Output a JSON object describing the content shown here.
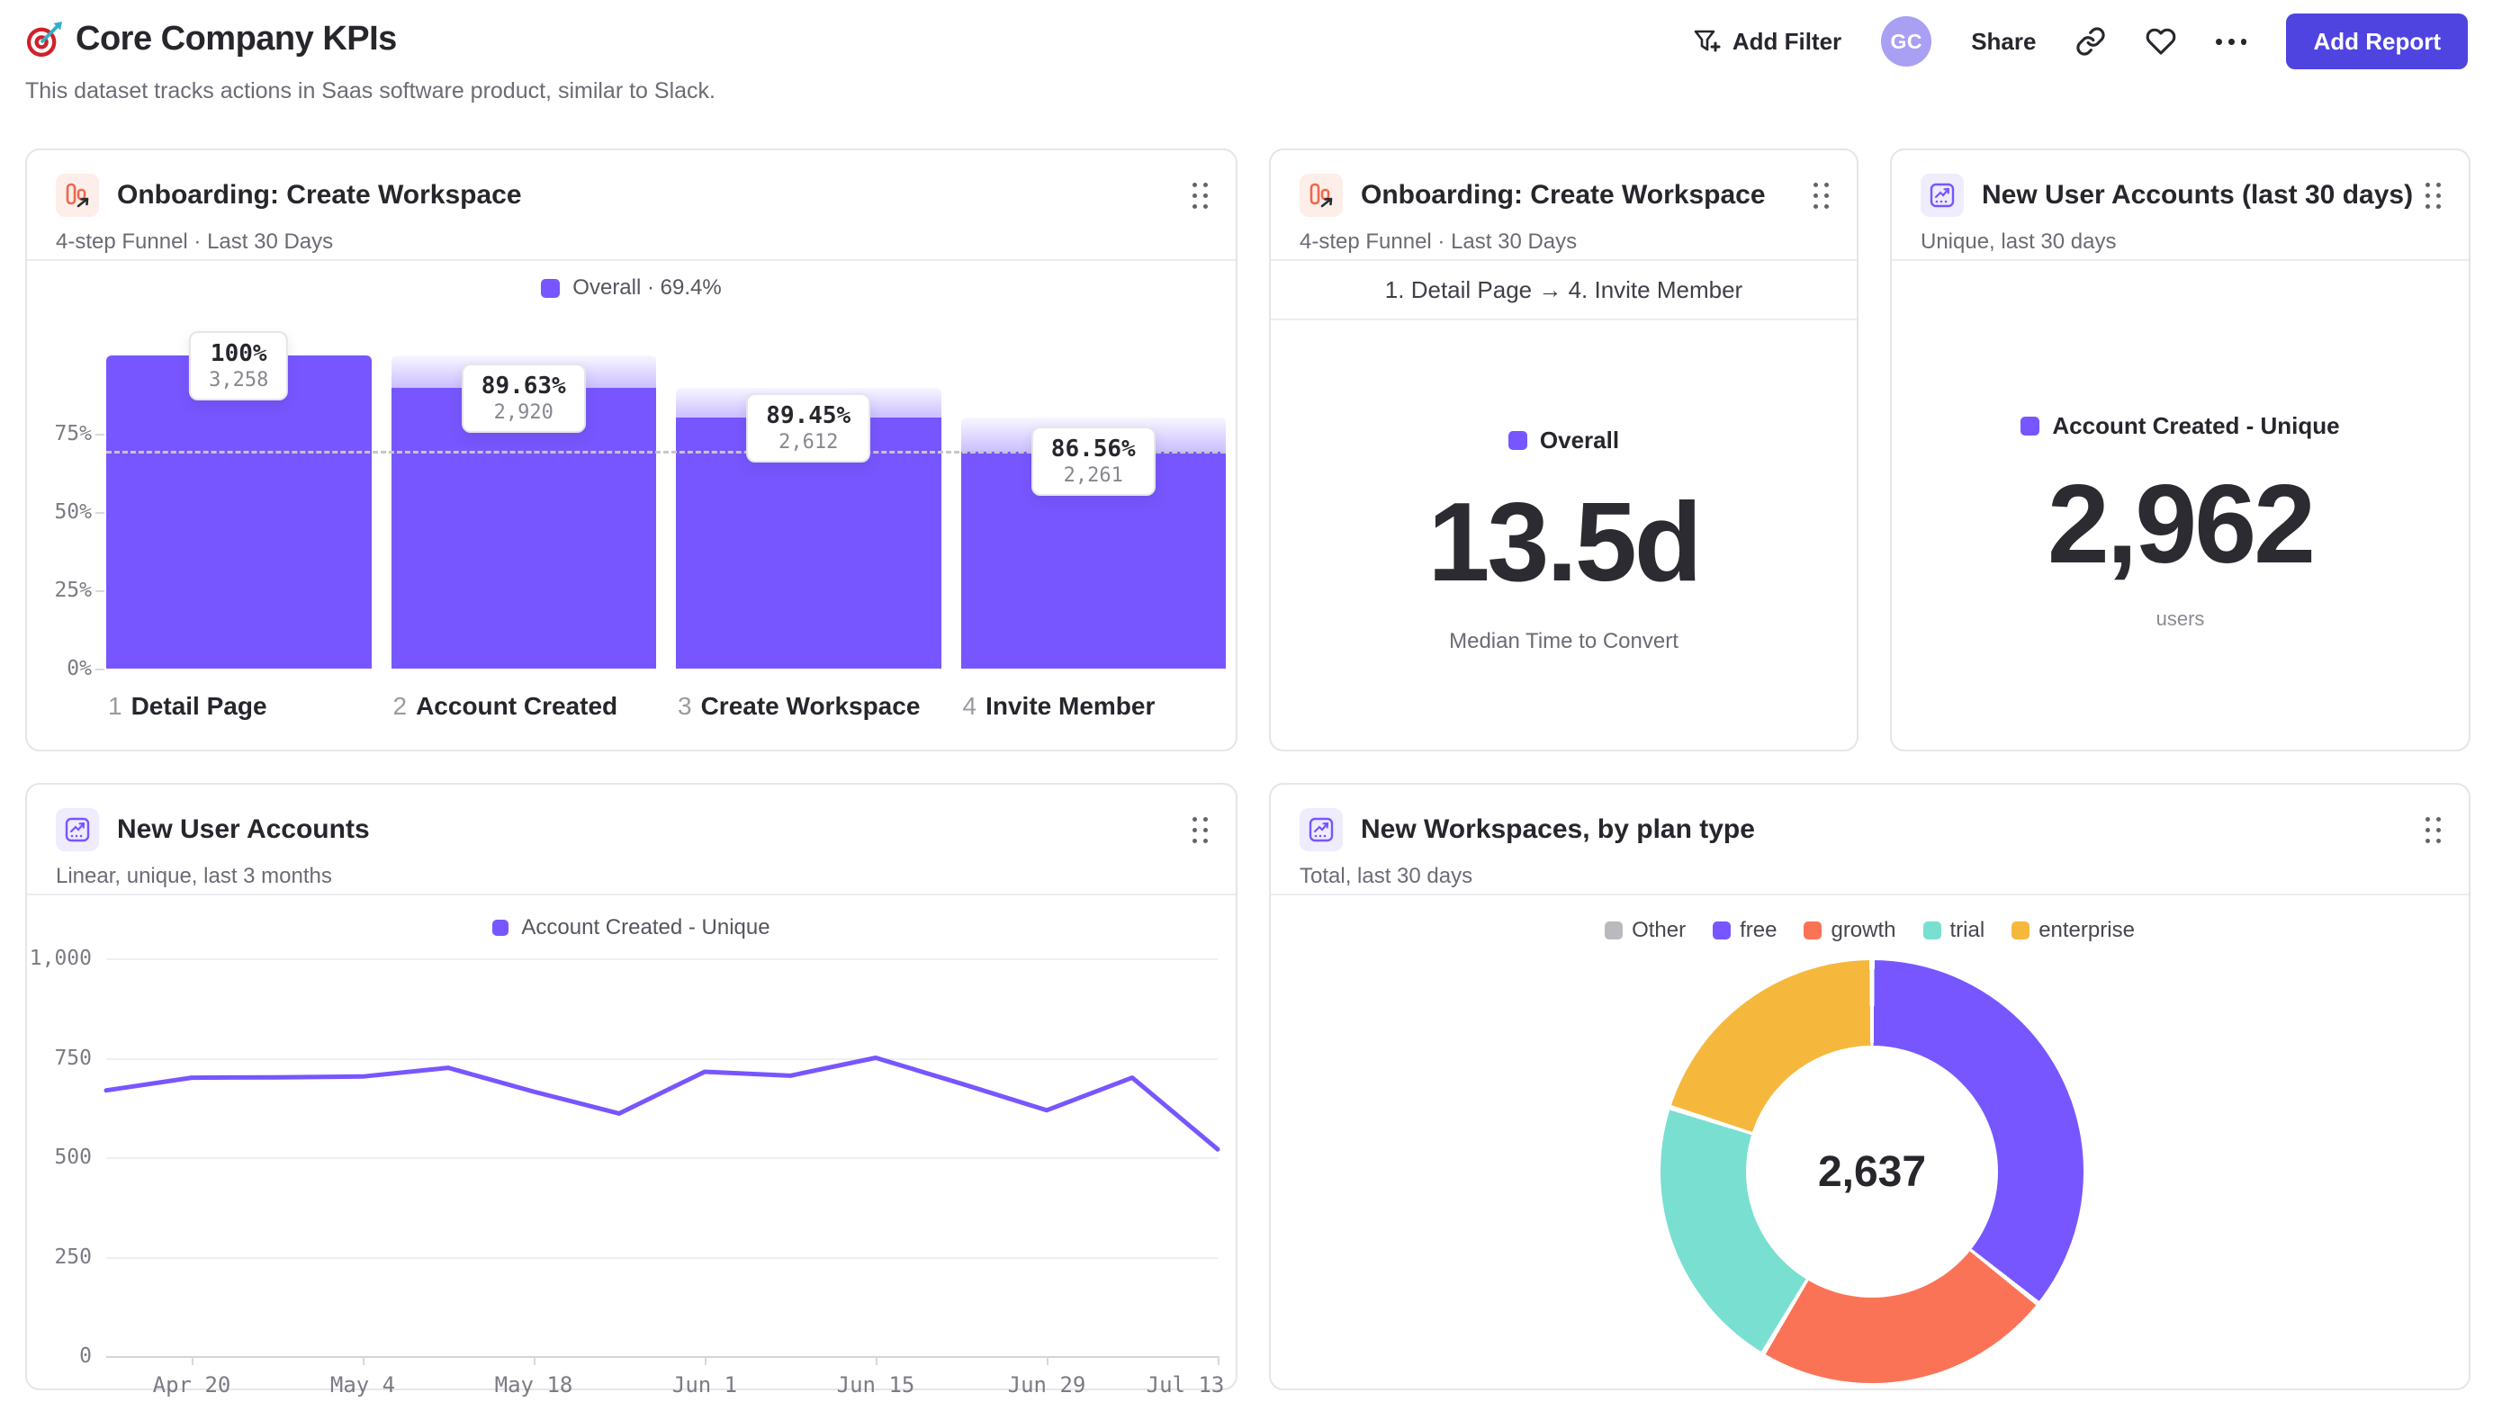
{
  "header": {
    "title": "Core Company KPIs",
    "subtitle": "This dataset tracks actions in Saas software product, similar to Slack."
  },
  "toolbar": {
    "add_filter_label": "Add Filter",
    "avatar_initials": "GC",
    "share_label": "Share",
    "add_report_label": "Add Report"
  },
  "cards": {
    "funnel": {
      "title": "Onboarding: Create Workspace",
      "subtitle": "4-step Funnel · Last 30 Days",
      "legend": "Overall · 69.4%"
    },
    "convert": {
      "title": "Onboarding: Create Workspace",
      "subtitle": "4-step Funnel · Last 30 Days",
      "range": "1. Detail Page → 4. Invite Member",
      "legend": "Overall",
      "value": "13.5d",
      "caption": "Median Time to Convert"
    },
    "accounts30": {
      "title": "New User Accounts (last 30 days)",
      "subtitle": "Unique, last 30 days",
      "legend": "Account Created - Unique",
      "value": "2,962",
      "caption": "users"
    },
    "accounts_line": {
      "title": "New User Accounts",
      "subtitle": "Linear, unique, last 3 months",
      "legend": "Account Created - Unique"
    },
    "workspaces": {
      "title": "New Workspaces, by plan type",
      "subtitle": "Total, last 30 days",
      "center_value": "2,637"
    }
  },
  "colors": {
    "purple": "#7856FF",
    "button": "#4F44E0",
    "coral": "#FB7357",
    "teal": "#79DFD1",
    "yellow": "#F5B83D",
    "gray": "#B9B9BE"
  },
  "chart_data": [
    {
      "id": "onboarding-funnel",
      "type": "bar",
      "title": "Onboarding: Create Workspace",
      "categories": [
        "Detail Page",
        "Account Created",
        "Create Workspace",
        "Invite Member"
      ],
      "step_numbers": [
        "1",
        "2",
        "3",
        "4"
      ],
      "values": [
        3258,
        2920,
        2612,
        2261
      ],
      "value_labels": [
        "3,258",
        "2,920",
        "2,612",
        "2,261"
      ],
      "pct_of_first": [
        100,
        89.6,
        80.2,
        69.4
      ],
      "step_conversion_labels": [
        "100%",
        "89.63%",
        "89.45%",
        "86.56%"
      ],
      "overall_conversion": "69.4%",
      "reference_line_pct": 69.4,
      "yticks": [
        "0%",
        "25%",
        "50%",
        "75%"
      ],
      "ylim": [
        0,
        100
      ],
      "bar_color": "#7856FF",
      "legend": "Overall · 69.4%"
    },
    {
      "id": "new-user-accounts-line",
      "type": "line",
      "series_name": "Account Created - Unique",
      "x_tick_labels": [
        "Apr 20",
        "May 4",
        "May 18",
        "Jun 1",
        "Jun 15",
        "Jun 29",
        "Jul 13"
      ],
      "x_tick_indices": [
        1,
        3,
        5,
        7,
        9,
        11,
        13
      ],
      "values": [
        668,
        700,
        701,
        703,
        725,
        665,
        610,
        715,
        705,
        750,
        685,
        618,
        700,
        520
      ],
      "ylim": [
        0,
        1000
      ],
      "ytick_values": [
        0,
        250,
        500,
        750,
        1000
      ],
      "ytick_labels": [
        "0",
        "250",
        "500",
        "750",
        "1,000"
      ],
      "grid": true,
      "line_color": "#7856FF"
    },
    {
      "id": "workspaces-by-plan",
      "type": "pie",
      "donut": true,
      "total": 2637,
      "total_label": "2,637",
      "labels": [
        "Other",
        "free",
        "growth",
        "trial",
        "enterprise"
      ],
      "values": [
        0,
        941,
        604,
        562,
        530
      ],
      "colors": [
        "#B9B9BE",
        "#7856FF",
        "#FB7357",
        "#79DFD1",
        "#F5B83D"
      ],
      "legend_position": "top"
    }
  ]
}
